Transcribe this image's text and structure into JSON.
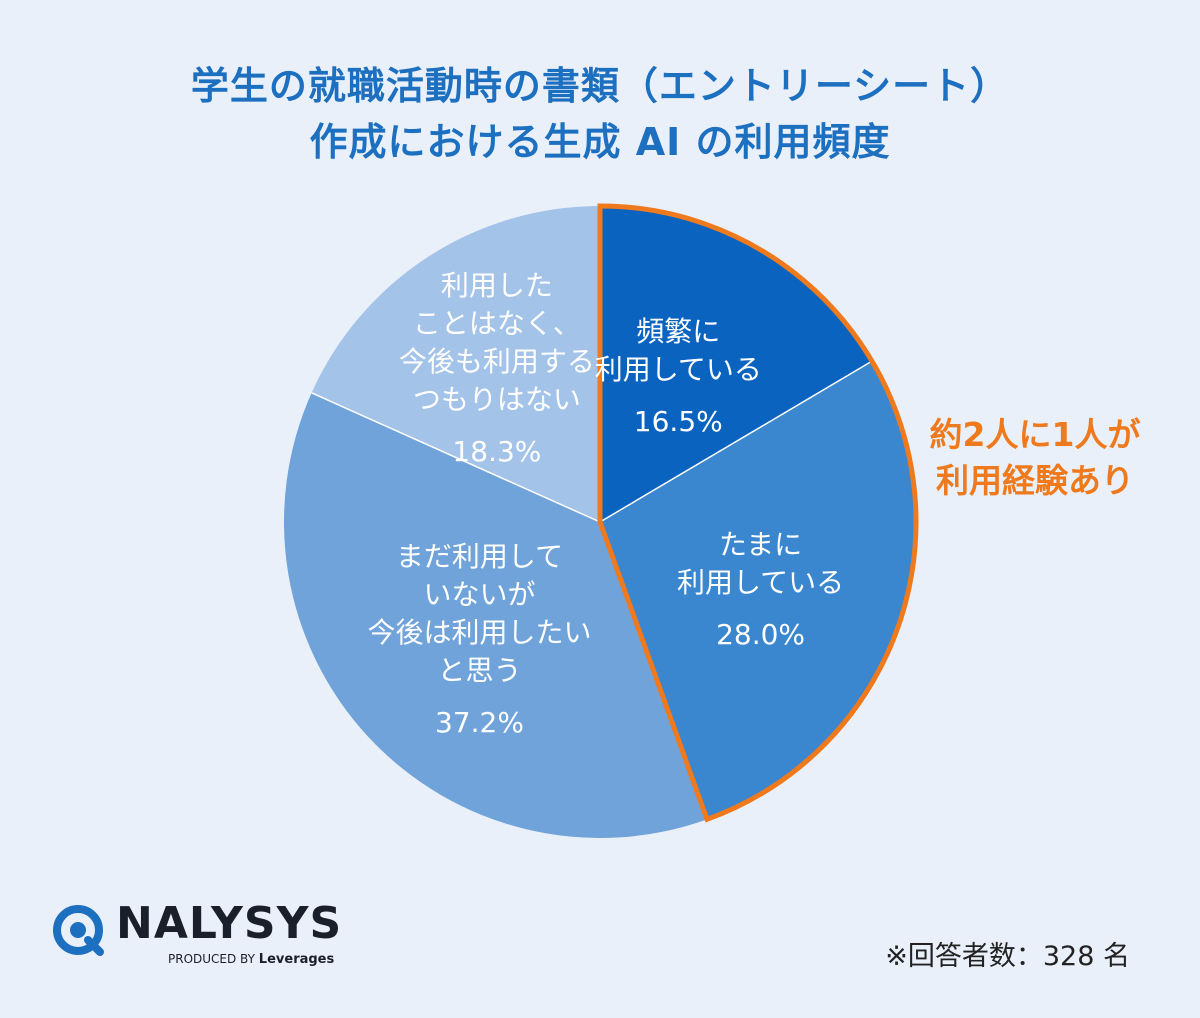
{
  "title": {
    "line1": "学生の就職活動時の書類（エントリーシート）",
    "line2": "作成における生成 AI の利用頻度"
  },
  "chart_data": {
    "type": "pie",
    "title": "学生の就職活動時の書類（エントリーシート）作成における生成 AI の利用頻度",
    "start_angle_deg": 0,
    "direction": "clockwise",
    "slices": [
      {
        "lines": [
          "頻繁に",
          "利用している"
        ],
        "value": 16.5,
        "display": "16.5%",
        "color": "#0b63c0"
      },
      {
        "lines": [
          "たまに",
          "利用している"
        ],
        "value": 28.0,
        "display": "28.0%",
        "color": "#3a86cf"
      },
      {
        "lines": [
          "まだ利用して",
          "いないが",
          "今後は利用したい",
          "と思う"
        ],
        "value": 37.2,
        "display": "37.2%",
        "color": "#6fa3d9"
      },
      {
        "lines": [
          "利用した",
          "ことはなく、",
          "今後も利用する",
          "つもりはない"
        ],
        "value": 18.3,
        "display": "18.3%",
        "color": "#a4c3e8"
      }
    ],
    "highlight": {
      "slices": [
        0,
        1
      ],
      "color": "#ee7a1d",
      "lines": [
        "約2人に1人が",
        "利用経験あり"
      ]
    }
  },
  "brand": {
    "name": "NALYSYS",
    "produced_by": "PRODUCED BY",
    "company": "Leverages"
  },
  "note": "※回答者数：328 名"
}
